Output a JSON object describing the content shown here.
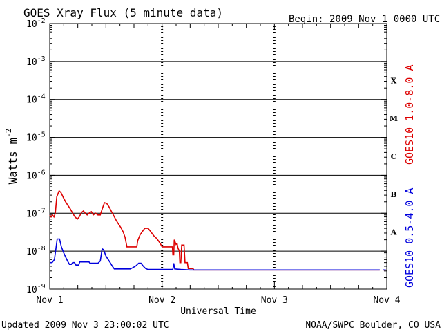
{
  "header": {
    "title": "GOES Xray Flux (5 minute data)",
    "begin": "Begin:  2009 Nov 1 0000 UTC"
  },
  "footer": {
    "updated": "Updated 2009 Nov  3 23:00:02 UTC",
    "credit": "NOAA/SWPC Boulder, CO USA"
  },
  "colors": {
    "long_channel": "#dd0000",
    "short_channel": "#0000dd",
    "frame": "#000000"
  },
  "chart_data": {
    "type": "line",
    "title": "GOES Xray Flux (5 minute data)",
    "xlabel": "Universal Time",
    "ylabel_base": "Watts m",
    "ylabel_exp": "-2",
    "y_scale": "log",
    "ylim": [
      1e-09,
      0.01
    ],
    "xlim": [
      0,
      72
    ],
    "x_units": "hours since 2009 Nov 1 0000 UTC",
    "x_ticks": [
      {
        "value": 0,
        "label": "Nov 1"
      },
      {
        "value": 24,
        "label": "Nov 2"
      },
      {
        "value": 48,
        "label": "Nov 3"
      },
      {
        "value": 72,
        "label": "Nov 4"
      }
    ],
    "y_ticks": [
      {
        "exp": -2,
        "label": "10",
        "sup": "-2"
      },
      {
        "exp": -3,
        "label": "10",
        "sup": "-3"
      },
      {
        "exp": -4,
        "label": "10",
        "sup": "-4"
      },
      {
        "exp": -5,
        "label": "10",
        "sup": "-5"
      },
      {
        "exp": -6,
        "label": "10",
        "sup": "-6"
      },
      {
        "exp": -7,
        "label": "10",
        "sup": "-7"
      },
      {
        "exp": -8,
        "label": "10",
        "sup": "-8"
      },
      {
        "exp": -9,
        "label": "10",
        "sup": "-9"
      }
    ],
    "flare_classes": [
      {
        "label": "X",
        "exp": -3.5
      },
      {
        "label": "M",
        "exp": -4.5
      },
      {
        "label": "C",
        "exp": -5.5
      },
      {
        "label": "B",
        "exp": -6.5
      },
      {
        "label": "A",
        "exp": -7.5
      }
    ],
    "series": [
      {
        "name": "GOES10 1.0-8.0 A",
        "color": "#dd0000",
        "points": [
          [
            0.0,
            9e-08
          ],
          [
            0.3,
            8e-08
          ],
          [
            0.6,
            9e-08
          ],
          [
            0.9,
            8e-08
          ],
          [
            1.2,
            1e-07
          ],
          [
            1.5,
            2.7e-07
          ],
          [
            2.0,
            3.9e-07
          ],
          [
            2.4,
            3.5e-07
          ],
          [
            2.9,
            2.6e-07
          ],
          [
            3.4,
            2e-07
          ],
          [
            3.9,
            1.6e-07
          ],
          [
            4.4,
            1.3e-07
          ],
          [
            4.9,
            1e-07
          ],
          [
            5.4,
            8e-08
          ],
          [
            5.9,
            7e-08
          ],
          [
            6.3,
            8e-08
          ],
          [
            6.8,
            1.05e-07
          ],
          [
            7.2,
            1.15e-07
          ],
          [
            7.6,
            1e-07
          ],
          [
            8.0,
            9e-08
          ],
          [
            8.4,
            1e-07
          ],
          [
            8.9,
            1.1e-07
          ],
          [
            9.3,
            9e-08
          ],
          [
            9.8,
            1e-07
          ],
          [
            10.3,
            9e-08
          ],
          [
            10.8,
            9e-08
          ],
          [
            11.3,
            1.4e-07
          ],
          [
            11.7,
            1.9e-07
          ],
          [
            12.2,
            1.8e-07
          ],
          [
            12.7,
            1.45e-07
          ],
          [
            13.2,
            1.1e-07
          ],
          [
            13.7,
            8.5e-08
          ],
          [
            14.2,
            6.5e-08
          ],
          [
            14.7,
            5.2e-08
          ],
          [
            15.2,
            4.2e-08
          ],
          [
            15.7,
            3.2e-08
          ],
          [
            16.1,
            2.3e-08
          ],
          [
            16.5,
            1.3e-08
          ],
          [
            18.6,
            1.3e-08
          ],
          [
            18.8,
            1.9e-08
          ],
          [
            19.3,
            2.7e-08
          ],
          [
            19.8,
            3.3e-08
          ],
          [
            20.3,
            4e-08
          ],
          [
            21.0,
            4e-08
          ],
          [
            21.4,
            3.5e-08
          ],
          [
            21.8,
            3e-08
          ],
          [
            22.3,
            2.5e-08
          ],
          [
            22.8,
            2.2e-08
          ],
          [
            23.2,
            1.9e-08
          ],
          [
            23.6,
            1.6e-08
          ],
          [
            24.0,
            1.3e-08
          ],
          [
            26.2,
            1.3e-08
          ],
          [
            26.3,
            8e-09
          ],
          [
            26.5,
            8e-09
          ],
          [
            26.6,
            2e-08
          ],
          [
            27.0,
            1.5e-08
          ],
          [
            27.2,
            1.6e-08
          ],
          [
            27.4,
            1.2e-08
          ],
          [
            27.7,
            1e-08
          ],
          [
            27.8,
            5e-09
          ],
          [
            28.0,
            5e-09
          ],
          [
            28.2,
            1.45e-08
          ],
          [
            28.7,
            1.45e-08
          ],
          [
            28.9,
            5e-09
          ],
          [
            29.4,
            5e-09
          ],
          [
            29.6,
            3.5e-09
          ],
          [
            30.6,
            3.5e-09
          ],
          [
            30.8,
            3.2e-09
          ],
          [
            70.5,
            3.2e-09
          ]
        ],
        "points_tail": [
          [
            71.2,
            3.2e-09
          ],
          [
            71.8,
            3.2e-09
          ]
        ]
      },
      {
        "name": "GOES10 0.5-4.0 A",
        "color": "#0000dd",
        "points": [
          [
            0.0,
            5e-09
          ],
          [
            0.5,
            5e-09
          ],
          [
            1.0,
            6e-09
          ],
          [
            1.3,
            1.1e-08
          ],
          [
            1.6,
            2.1e-08
          ],
          [
            2.1,
            2.1e-08
          ],
          [
            2.5,
            1.3e-08
          ],
          [
            3.0,
            9e-09
          ],
          [
            3.4,
            7e-09
          ],
          [
            3.8,
            5.5e-09
          ],
          [
            4.2,
            4.5e-09
          ],
          [
            4.6,
            4.5e-09
          ],
          [
            4.9,
            5e-09
          ],
          [
            5.3,
            5e-09
          ],
          [
            5.6,
            4.3e-09
          ],
          [
            6.2,
            4.3e-09
          ],
          [
            6.4,
            5.2e-09
          ],
          [
            8.4,
            5.2e-09
          ],
          [
            8.6,
            4.8e-09
          ],
          [
            10.3,
            4.8e-09
          ],
          [
            10.8,
            5.5e-09
          ],
          [
            11.2,
            1.15e-08
          ],
          [
            11.5,
            1.1e-08
          ],
          [
            12.0,
            7.5e-09
          ],
          [
            12.5,
            6e-09
          ],
          [
            13.0,
            4.8e-09
          ],
          [
            13.4,
            4e-09
          ],
          [
            13.8,
            3.4e-09
          ],
          [
            16.5,
            3.4e-09
          ],
          [
            17.2,
            3.4e-09
          ],
          [
            17.8,
            3.7e-09
          ],
          [
            18.4,
            4.1e-09
          ],
          [
            19.0,
            4.8e-09
          ],
          [
            19.5,
            4.8e-09
          ],
          [
            20.0,
            4e-09
          ],
          [
            20.5,
            3.5e-09
          ],
          [
            21.0,
            3.3e-09
          ],
          [
            26.0,
            3.3e-09
          ],
          [
            26.3,
            3.3e-09
          ],
          [
            26.5,
            4.8e-09
          ],
          [
            26.7,
            3.4e-09
          ],
          [
            28.0,
            3.3e-09
          ],
          [
            30.0,
            3.2e-09
          ],
          [
            70.5,
            3.2e-09
          ]
        ],
        "points_tail": [
          [
            71.2,
            3.2e-09
          ],
          [
            71.8,
            3.2e-09
          ]
        ]
      }
    ]
  }
}
